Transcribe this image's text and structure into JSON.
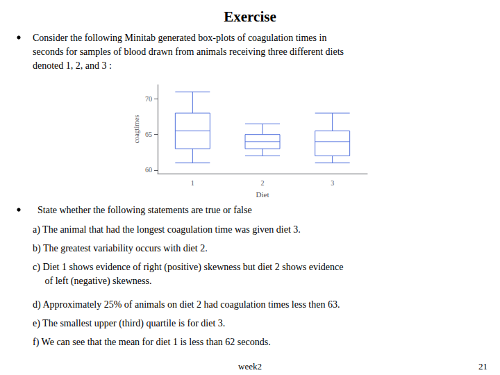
{
  "chart_data": {
    "type": "boxplot",
    "title": "Exercise",
    "annotations": [
      "Consider the following Minitab generated box-plots of coagulation times in\nseconds for samples of blood drawn from animals receiving three different diets\ndenoted 1, 2, and 3 :",
      "  State whether the following statements are true or false",
      "a) The animal that had the longest coagulation time was given diet 3.",
      "b) The greatest variability occurs with diet 2.",
      "c) Diet 1 shows evidence of right (positive) skewness but diet 2 shows evidence\n     of left (negative) skewness.",
      "d) Approximately 25% of animals on diet 2 had coagulation times less then 63.",
      "e) The smallest upper (third) quartile is for diet 3.",
      "f) We can see that the mean for diet 1 is less than 62 seconds."
    ],
    "footer": [
      "week2",
      "21"
    ],
    "x_label": "Diet",
    "y_label": "coagtimes",
    "categories": [
      "1",
      "2",
      "3"
    ],
    "whisker_low": [
      61.0,
      62.0,
      61.0
    ],
    "q1": [
      63.0,
      63.0,
      62.0
    ],
    "median": [
      65.5,
      64.0,
      64.0
    ],
    "q3": [
      68.0,
      65.0,
      65.5
    ],
    "whisker_high": [
      71.0,
      66.5,
      68.0
    ],
    "ylim": [
      59.5,
      72
    ],
    "yticks": [
      60,
      65,
      70
    ],
    "grid": false
  }
}
